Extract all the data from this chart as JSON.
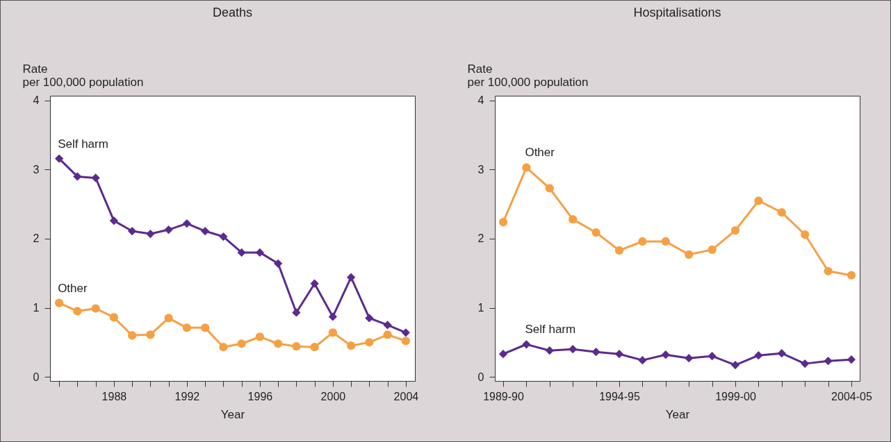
{
  "chart_data": [
    {
      "type": "line",
      "title": "Deaths",
      "xlabel": "Year",
      "ylabel": "Rate\nper 100,000 population",
      "legend": false,
      "grid": false,
      "line_style": "solid",
      "x": [
        1985,
        1986,
        1987,
        1988,
        1989,
        1990,
        1991,
        1992,
        1993,
        1994,
        1995,
        1996,
        1997,
        1998,
        1999,
        2000,
        2001,
        2002,
        2003,
        2004
      ],
      "xlim": [
        1984.5,
        2004.5
      ],
      "xticks": [
        {
          "value": 1985,
          "label": null
        },
        {
          "value": 1986,
          "label": null
        },
        {
          "value": 1987,
          "label": null
        },
        1988,
        {
          "value": 1989,
          "label": null
        },
        {
          "value": 1990,
          "label": null
        },
        {
          "value": 1991,
          "label": null
        },
        1992,
        {
          "value": 1993,
          "label": null
        },
        {
          "value": 1994,
          "label": null
        },
        {
          "value": 1995,
          "label": null
        },
        1996,
        {
          "value": 1997,
          "label": null
        },
        {
          "value": 1998,
          "label": null
        },
        {
          "value": 1999,
          "label": null
        },
        2000,
        {
          "value": 2001,
          "label": null
        },
        {
          "value": 2002,
          "label": null
        },
        {
          "value": 2003,
          "label": null
        },
        2004
      ],
      "ylim": [
        -0.06,
        4.07
      ],
      "yticks": [
        0,
        1,
        2,
        3,
        4
      ],
      "series": [
        {
          "name": "Self harm",
          "color": "#5b2a8e",
          "marker": "diamond",
          "values": [
            3.16,
            2.9,
            2.88,
            2.26,
            2.11,
            2.07,
            2.13,
            2.22,
            2.11,
            2.03,
            1.8,
            1.8,
            1.64,
            0.93,
            1.35,
            0.87,
            1.44,
            0.85,
            0.75,
            0.64
          ]
        },
        {
          "name": "Other",
          "color": "#f5a043",
          "marker": "circle",
          "values": [
            1.07,
            0.95,
            0.99,
            0.86,
            0.6,
            0.61,
            0.85,
            0.71,
            0.71,
            0.43,
            0.48,
            0.58,
            0.48,
            0.44,
            0.43,
            0.64,
            0.45,
            0.5,
            0.61,
            0.52
          ]
        }
      ]
    },
    {
      "type": "line",
      "title": "Hospitalisations",
      "xlabel": "Year",
      "ylabel": "Rate\nper 100,000 population",
      "legend": false,
      "grid": false,
      "line_style": "solid",
      "categories": [
        "1989-90",
        null,
        null,
        null,
        null,
        "1994-95",
        null,
        null,
        null,
        null,
        "1999-00",
        null,
        null,
        null,
        null,
        "2004-05"
      ],
      "ylim": [
        -0.06,
        4.07
      ],
      "yticks": [
        0,
        1,
        2,
        3,
        4
      ],
      "series": [
        {
          "name": "Other",
          "color": "#f5a043",
          "marker": "circle",
          "values": [
            2.24,
            3.03,
            2.73,
            2.28,
            2.09,
            1.83,
            1.96,
            1.96,
            1.77,
            1.84,
            2.12,
            2.55,
            2.38,
            2.06,
            1.53,
            1.47
          ]
        },
        {
          "name": "Self harm",
          "color": "#5b2a8e",
          "marker": "diamond",
          "values": [
            0.33,
            0.47,
            0.38,
            0.4,
            0.36,
            0.33,
            0.24,
            0.32,
            0.27,
            0.3,
            0.17,
            0.31,
            0.34,
            0.19,
            0.23,
            0.25
          ]
        }
      ]
    }
  ]
}
